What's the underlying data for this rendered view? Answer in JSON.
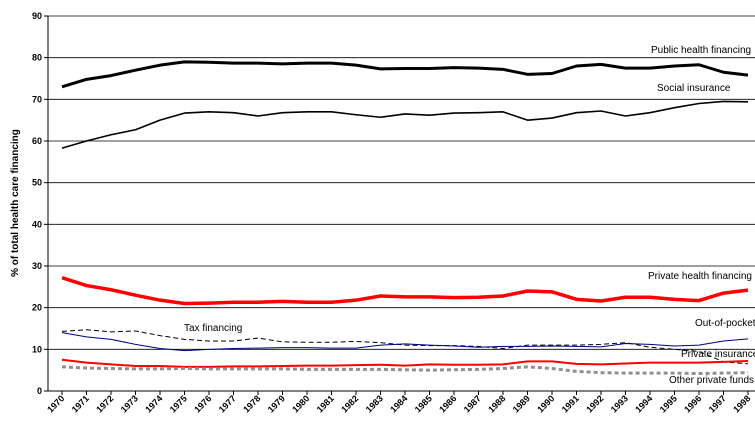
{
  "chart_data": {
    "type": "line",
    "y_label": "% of total health care financing",
    "categories": [
      "1970",
      "1971",
      "1972",
      "1973",
      "1974",
      "1975",
      "1976",
      "1977",
      "1978",
      "1979",
      "1980",
      "1981",
      "1982",
      "1983",
      "1984",
      "1985",
      "1986",
      "1987",
      "1988",
      "1989",
      "1990",
      "1991",
      "1992",
      "1993",
      "1994",
      "1995",
      "1996",
      "1997",
      "1998"
    ],
    "ylim": [
      0,
      90
    ],
    "yticks": [
      0,
      10,
      20,
      30,
      40,
      50,
      60,
      70,
      80,
      90
    ],
    "grid": true,
    "series": [
      {
        "name": "Public health financing",
        "color": "#000000",
        "values": [
          73,
          74.8,
          75.7,
          77,
          78.2,
          79,
          78.9,
          78.7,
          78.7,
          78.5,
          78.7,
          78.7,
          78.2,
          77.3,
          77.4,
          77.4,
          77.6,
          77.5,
          77.2,
          76,
          76.2,
          78,
          78.4,
          77.5,
          77.5,
          78,
          78.3,
          76.5,
          75.8
        ]
      },
      {
        "name": "Social insurance",
        "color": "#000000",
        "values": [
          58.3,
          60,
          61.5,
          62.7,
          65,
          66.7,
          67,
          66.8,
          66,
          66.8,
          67,
          67,
          66.3,
          65.7,
          66.5,
          66.2,
          66.7,
          66.8,
          67,
          65,
          65.5,
          66.8,
          67.2,
          66,
          66.8,
          68,
          69,
          69.5,
          69.4
        ]
      },
      {
        "name": "Private health financing",
        "color": "#ff0000",
        "values": [
          27.2,
          25.3,
          24.3,
          23,
          21.8,
          21,
          21.1,
          21.3,
          21.3,
          21.5,
          21.3,
          21.3,
          21.8,
          22.8,
          22.6,
          22.6,
          22.4,
          22.5,
          22.8,
          24,
          23.8,
          22,
          21.6,
          22.5,
          22.5,
          22,
          21.7,
          23.5,
          24.2
        ]
      },
      {
        "name": "Tax financing",
        "color": "#000000",
        "values": [
          14.3,
          14.7,
          14.2,
          14.4,
          13.3,
          12.4,
          12,
          12,
          12.7,
          11.8,
          11.7,
          11.7,
          11.9,
          11.6,
          11,
          10.9,
          10.9,
          10.7,
          10.2,
          11,
          11,
          11,
          11.2,
          11.6,
          10.5,
          10,
          9.5,
          7,
          6.5
        ]
      },
      {
        "name": "Out-of-pocket",
        "color": "#000080",
        "values": [
          14,
          13,
          12.4,
          11.2,
          10.2,
          9.7,
          10,
          10.2,
          10.3,
          10.4,
          10.4,
          10.3,
          10.3,
          11,
          11.3,
          11,
          10.8,
          10.5,
          10.7,
          10.7,
          10.8,
          10.7,
          10.6,
          11.4,
          11.2,
          10.8,
          11,
          12,
          12.5
        ]
      },
      {
        "name": "Private insurance",
        "color": "#ff0000",
        "values": [
          7.5,
          6.8,
          6.4,
          6,
          6,
          5.8,
          5.8,
          5.9,
          5.9,
          6,
          6.1,
          6.1,
          6.2,
          6.3,
          6.1,
          6.4,
          6.3,
          6.3,
          6.4,
          7.1,
          7.1,
          6.5,
          6.4,
          6.6,
          6.8,
          6.8,
          6.8,
          7,
          7.2
        ]
      },
      {
        "name": "Other private funds",
        "color": "#909090",
        "values": [
          5.8,
          5.5,
          5.4,
          5.3,
          5.3,
          5.4,
          5.3,
          5.3,
          5.3,
          5.3,
          5.2,
          5.2,
          5.2,
          5.2,
          5.1,
          5.0,
          5.1,
          5.2,
          5.4,
          5.8,
          5.4,
          4.7,
          4.4,
          4.3,
          4.3,
          4.3,
          4.2,
          4.3,
          4.4
        ]
      }
    ]
  }
}
